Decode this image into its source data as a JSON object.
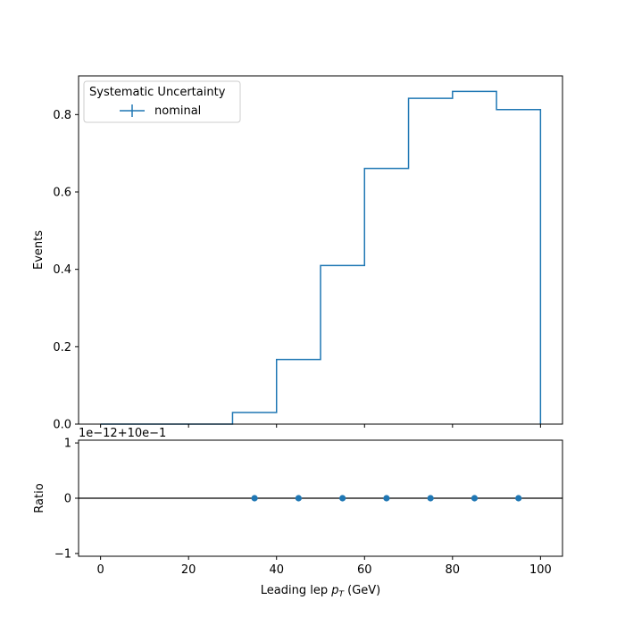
{
  "chart_data": {
    "type": "line",
    "top": {
      "ylabel": "Events",
      "xlim": [
        -5,
        105
      ],
      "ylim": [
        0,
        0.9
      ],
      "yticks": [
        0.0,
        0.2,
        0.4,
        0.6,
        0.8
      ],
      "ytick_labels": [
        "0.0",
        "0.2",
        "0.4",
        "0.6",
        "0.8"
      ],
      "xticks": [
        0,
        20,
        40,
        60,
        80,
        100
      ],
      "legend": {
        "title": "Systematic Uncertainty",
        "placement": "upper-left",
        "entries": [
          "nominal"
        ]
      },
      "series": [
        {
          "name": "nominal",
          "style": "step",
          "color": "#1f77b4",
          "bin_edges": [
            0,
            10,
            20,
            30,
            40,
            50,
            60,
            70,
            80,
            90,
            100
          ],
          "values": [
            0.0,
            0.0,
            0.0,
            0.03,
            0.167,
            0.41,
            0.661,
            0.842,
            0.86,
            0.813
          ]
        }
      ]
    },
    "ratio": {
      "ylabel": "Ratio",
      "xlabel": "Leading lep p_T (GeV)",
      "xlabel_main": "Leading lep ",
      "xlabel_sym": "p",
      "xlabel_sub": "T",
      "xlabel_unit": " (GeV)",
      "offset_text": "1e−12+10e−1",
      "xlim": [
        -5,
        105
      ],
      "ylim": [
        -1.05,
        1.05
      ],
      "yticks": [
        -1,
        0,
        1
      ],
      "ytick_labels": [
        "−1",
        "0",
        "1"
      ],
      "xticks": [
        0,
        20,
        40,
        60,
        80,
        100
      ],
      "xtick_labels": [
        "0",
        "20",
        "40",
        "60",
        "80",
        "100"
      ],
      "reference_line": 0,
      "points": {
        "x": [
          35,
          45,
          55,
          65,
          75,
          85,
          95
        ],
        "y": [
          0,
          0,
          0,
          0,
          0,
          0,
          0
        ],
        "color": "#1f77b4"
      }
    }
  }
}
